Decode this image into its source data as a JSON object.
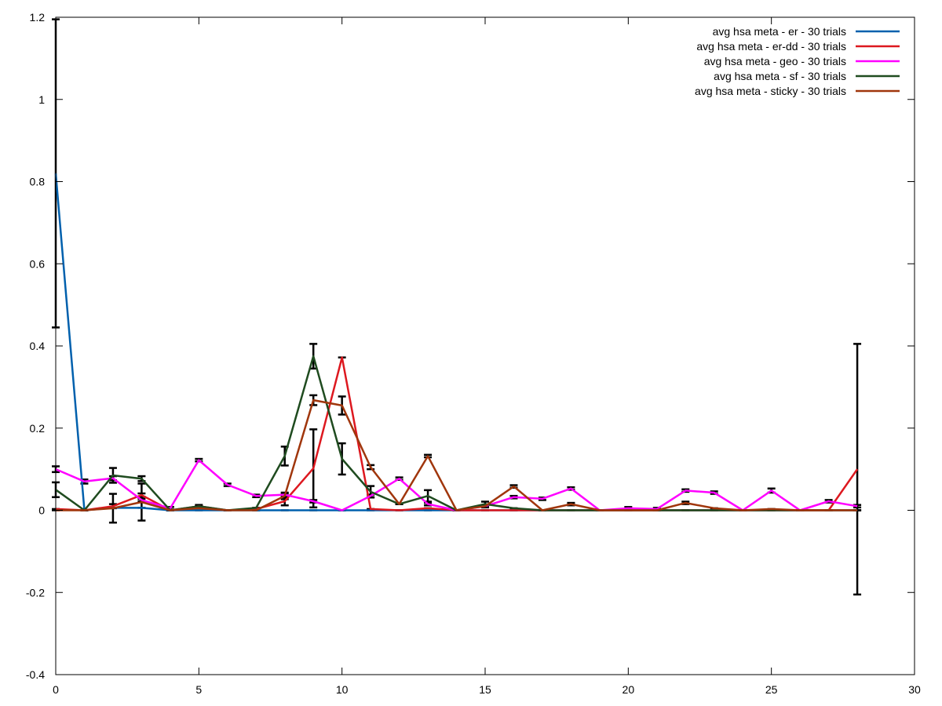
{
  "chart_data": {
    "type": "line",
    "title": "",
    "xlabel": "",
    "ylabel": "",
    "xlim": [
      0,
      30
    ],
    "ylim": [
      -0.4,
      1.2
    ],
    "xticks": [
      0,
      5,
      10,
      15,
      20,
      25,
      30
    ],
    "yticks": [
      -0.4,
      -0.2,
      0,
      0.2,
      0.4,
      0.6,
      0.8,
      1,
      1.2
    ],
    "xtick_labels": [
      "0",
      "5",
      "10",
      "15",
      "20",
      "25",
      "30"
    ],
    "ytick_labels": [
      "-0.4",
      "-0.2",
      "0",
      "0.2",
      "0.4",
      "0.6",
      "0.8",
      "1",
      "1.2"
    ],
    "grid": false,
    "legend_position": "top-right",
    "x": [
      0,
      1,
      2,
      3,
      4,
      5,
      6,
      7,
      8,
      9,
      10,
      11,
      12,
      13,
      14,
      15,
      16,
      17,
      18,
      19,
      20,
      21,
      22,
      23,
      24,
      25,
      26,
      27,
      28
    ],
    "series": [
      {
        "name": "avg hsa meta - er - 30 trials",
        "color": "#0060ad",
        "values": [
          0.82,
          0.0,
          0.006,
          0.006,
          0,
          0,
          0,
          0,
          0,
          0,
          0,
          0,
          0,
          0,
          0,
          0,
          0,
          0,
          0,
          0,
          0,
          0,
          0,
          0,
          0,
          0,
          0,
          0,
          0
        ],
        "errors": [
          0.375,
          0,
          0,
          0,
          0,
          0,
          0,
          0,
          0,
          0,
          0,
          0,
          0,
          0,
          0,
          0,
          0,
          0,
          0,
          0,
          0,
          0,
          0,
          0,
          0,
          0,
          0,
          0,
          0
        ]
      },
      {
        "name": "avg hsa meta - er-dd - 30 trials",
        "color": "#dd181f",
        "values": [
          0.003,
          0.0,
          0.01,
          0.037,
          0.0,
          0.01,
          0.0,
          0.003,
          0.022,
          0.102,
          0.372,
          0.003,
          0.0,
          0.005,
          0.0,
          0.0,
          0.0,
          0.0,
          0.0,
          0.0,
          0.0,
          0.0,
          0.0,
          0.0,
          0.0,
          0.0,
          0.0,
          0.0,
          0.1
        ],
        "errors": [
          0,
          0,
          0.005,
          0.004,
          0,
          0.003,
          0,
          0,
          0.01,
          0.095,
          0,
          0,
          0,
          0,
          0,
          0,
          0,
          0,
          0,
          0,
          0,
          0,
          0,
          0,
          0,
          0,
          0,
          0,
          0.305
        ]
      },
      {
        "name": "avg hsa meta - geo - 30 trials",
        "color": "#ff00ff",
        "values": [
          0.1,
          0.07,
          0.078,
          0.025,
          0.005,
          0.122,
          0.062,
          0.035,
          0.038,
          0.022,
          0.0,
          0.035,
          0.077,
          0.015,
          0.0,
          0.01,
          0.032,
          0.028,
          0.053,
          0.0,
          0.005,
          0.003,
          0.048,
          0.043,
          0.0,
          0.048,
          0.0,
          0.022,
          0.01
        ],
        "errors": [
          0.007,
          0.005,
          0.005,
          0.003,
          0.003,
          0.003,
          0.003,
          0.003,
          0.003,
          0.003,
          0,
          0.003,
          0.003,
          0.003,
          0,
          0.003,
          0.003,
          0.003,
          0.003,
          0,
          0.003,
          0.003,
          0.003,
          0.003,
          0,
          0.005,
          0,
          0.003,
          0.003
        ]
      },
      {
        "name": "avg hsa meta - sf - 30 trials",
        "color": "#1f4b1f",
        "values": [
          0.05,
          0.0,
          0.085,
          0.077,
          0.0,
          0.01,
          0.0,
          0.006,
          0.132,
          0.375,
          0.125,
          0.045,
          0.015,
          0.035,
          0.0,
          0.015,
          0.005,
          0.0,
          0.0,
          0.0,
          0.0,
          0.0,
          0.0,
          0.0,
          0.0,
          0.0,
          0.0,
          0.0,
          0.0
        ],
        "errors": [
          0.018,
          0,
          0.018,
          0.006,
          0,
          0,
          0,
          0,
          0.023,
          0.03,
          0.038,
          0.014,
          0,
          0.014,
          0,
          0.006,
          0,
          0,
          0,
          0,
          0,
          0,
          0,
          0,
          0,
          0,
          0,
          0,
          0
        ]
      },
      {
        "name": "avg hsa meta - sticky - 30 trials",
        "color": "#a0360c",
        "values": [
          0.0,
          0.0,
          0.005,
          0.02,
          0.0,
          0.005,
          0.0,
          0.0,
          0.035,
          0.268,
          0.255,
          0.105,
          0.015,
          0.132,
          0.0,
          0.01,
          0.058,
          0.0,
          0.015,
          0.0,
          0.0,
          0.0,
          0.018,
          0.005,
          0.0,
          0.003,
          0.0,
          0.0,
          0.0
        ],
        "errors": [
          0,
          0,
          0.035,
          0.045,
          0,
          0,
          0,
          0,
          0.008,
          0.012,
          0.022,
          0.005,
          0,
          0.003,
          0,
          0,
          0.003,
          0,
          0.003,
          0,
          0,
          0,
          0.003,
          0,
          0,
          0,
          0,
          0,
          0
        ]
      }
    ]
  }
}
